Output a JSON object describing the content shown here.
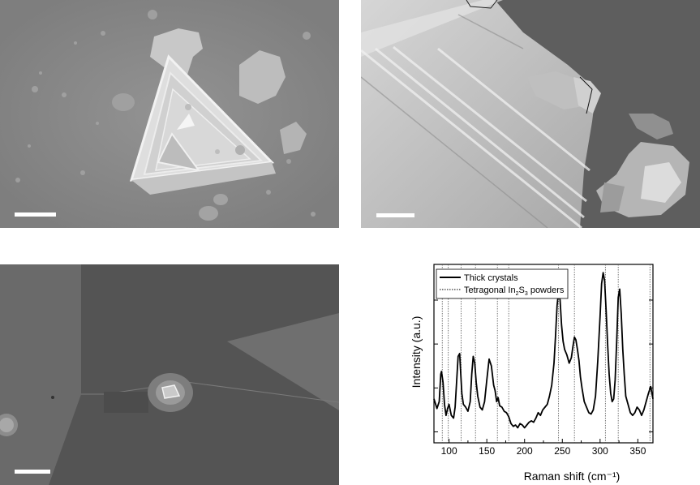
{
  "figure": {
    "panels": [
      {
        "kind": "sem-image",
        "name": "Top-left SEM micrograph of triangular crystal"
      },
      {
        "kind": "sem-image",
        "name": "Top-right SEM micrograph edge close-up"
      },
      {
        "kind": "sem-image",
        "name": "Bottom-left SEM micrograph of film with small crystal"
      }
    ],
    "colors": {
      "trace": "#000000",
      "reference_lines": "#555555",
      "sem_bg_1": "#8a8a8a",
      "sem_bg_2": "#6c6c6c",
      "sem_bg_3": "#606060"
    }
  },
  "chart_data": {
    "type": "line",
    "xlabel": "Raman shift (cm⁻¹)",
    "ylabel": "Intensity (a.u.)",
    "xlim": [
      80,
      370
    ],
    "xticks": [
      100,
      150,
      200,
      250,
      300,
      350
    ],
    "legend": {
      "placement": "top-left",
      "entries": [
        {
          "label": "Thick crystals",
          "style": "solid"
        },
        {
          "label_prefix": "Tetragonal In",
          "sub1": "2",
          "label_mid": "S",
          "sub2": "3",
          "label_suffix": " powders",
          "style": "dotted"
        }
      ]
    },
    "series": [
      {
        "name": "Thick crystals",
        "x": [
          80,
          84,
          87,
          89,
          90,
          92,
          94,
          96,
          98,
          100,
          103,
          106,
          108,
          110,
          112,
          114,
          115,
          117,
          119,
          122,
          125,
          128,
          130,
          132,
          134,
          136,
          138,
          141,
          144,
          147,
          150,
          153,
          156,
          159,
          161,
          163,
          165,
          167,
          170,
          173,
          176,
          179,
          182,
          185,
          188,
          191,
          194,
          197,
          200,
          203,
          206,
          209,
          212,
          215,
          218,
          221,
          224,
          227,
          230,
          233,
          236,
          239,
          241,
          243,
          245,
          247,
          249,
          251,
          253,
          256,
          259,
          262,
          264,
          266,
          268,
          270,
          272,
          274,
          276,
          279,
          282,
          285,
          288,
          291,
          294,
          297,
          300,
          302,
          304,
          306,
          308,
          310,
          312,
          314,
          316,
          318,
          320,
          322,
          324,
          326,
          328,
          330,
          332,
          334,
          337,
          340,
          343,
          346,
          349,
          352,
          355,
          358,
          361,
          364,
          367,
          370
        ],
        "y": [
          24,
          17,
          22,
          42,
          44,
          36,
          20,
          12,
          17,
          20,
          12,
          10,
          18,
          36,
          55,
          57,
          47,
          28,
          20,
          18,
          15,
          22,
          42,
          55,
          50,
          36,
          26,
          18,
          16,
          22,
          38,
          53,
          48,
          34,
          30,
          22,
          25,
          19,
          18,
          15,
          14,
          11,
          6,
          4,
          5,
          3,
          6,
          5,
          3,
          5,
          7,
          8,
          7,
          10,
          14,
          12,
          16,
          18,
          20,
          26,
          34,
          50,
          70,
          92,
          102,
          96,
          78,
          66,
          60,
          56,
          50,
          54,
          62,
          69,
          67,
          60,
          52,
          40,
          32,
          22,
          18,
          14,
          13,
          16,
          26,
          52,
          84,
          108,
          116,
          110,
          88,
          64,
          42,
          28,
          22,
          24,
          38,
          66,
          98,
          104,
          86,
          60,
          42,
          26,
          20,
          14,
          12,
          14,
          18,
          16,
          12,
          16,
          22,
          28,
          33,
          24
        ]
      },
      {
        "name": "Tetragonal In2S3 powders",
        "reference_positions": [
          91,
          99,
          116,
          135,
          164,
          179,
          245,
          266,
          307,
          324,
          366
        ]
      }
    ]
  }
}
